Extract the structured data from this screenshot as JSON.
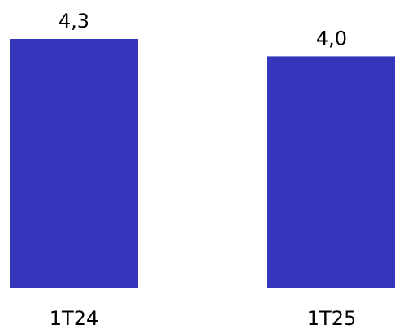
{
  "chart_data": {
    "type": "bar",
    "categories": [
      "1T24",
      "1T25"
    ],
    "values": [
      4.3,
      4.0
    ],
    "value_labels": [
      "4,3",
      "4,0"
    ],
    "title": "",
    "xlabel": "",
    "ylabel": "",
    "ylim": [
      0,
      4.3
    ],
    "grid": false,
    "legend": "none",
    "bar_color": "#3535bb"
  }
}
